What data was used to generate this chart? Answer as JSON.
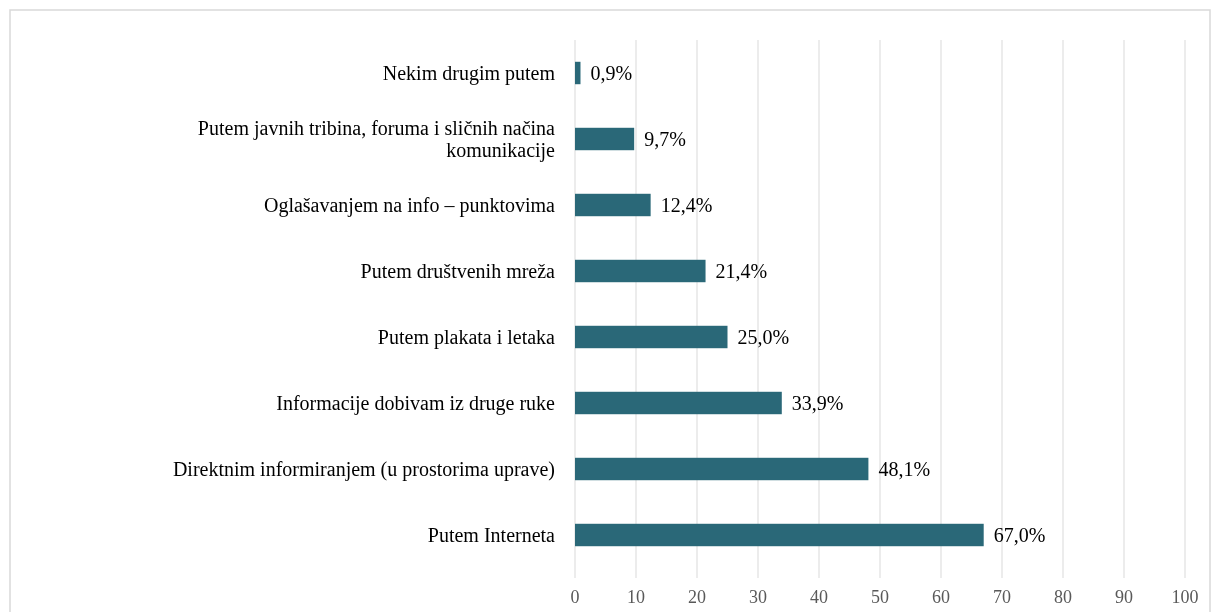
{
  "chart_data": {
    "type": "bar",
    "orientation": "horizontal",
    "categories": [
      "Nekim drugim putem",
      "Putem javnih tribina, foruma i sličnih načina komunikacije",
      "Oglašavanjem na info – punktovima",
      "Putem društvenih mreža",
      "Putem plakata i letaka",
      "Informacije dobivam iz druge ruke",
      "Direktnim informiranjem (u prostorima uprave)",
      "Putem Interneta"
    ],
    "values": [
      0.9,
      9.7,
      12.4,
      21.4,
      25.0,
      33.9,
      48.1,
      67.0
    ],
    "value_labels": [
      "0,9%",
      "9,7%",
      "12,4%",
      "21,4%",
      "25,0%",
      "33,9%",
      "48,1%",
      "67,0%"
    ],
    "color": "#2a6878",
    "xlim": [
      0,
      100
    ],
    "xticks": [
      0,
      10,
      20,
      30,
      40,
      50,
      60,
      70,
      80,
      90,
      100
    ],
    "grid": "x"
  }
}
